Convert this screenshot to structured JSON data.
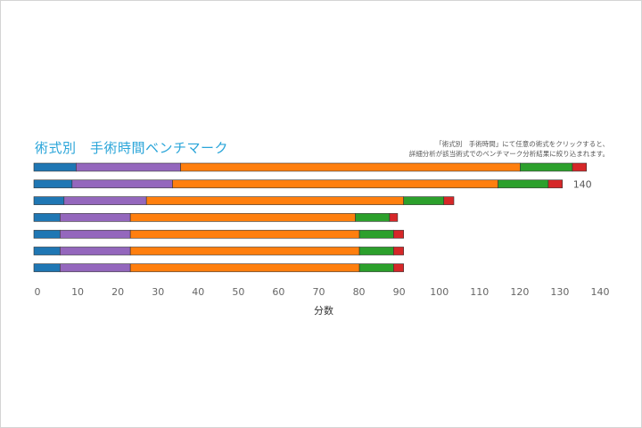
{
  "chart_data": {
    "type": "bar",
    "orientation": "horizontal",
    "stacked": true,
    "title": "術式別　手術時間ベンチマーク",
    "note": [
      "「術式別　手術時間」にて任意の術式をクリックすると、",
      "詳細分析が該当術式でのベンチマーク分析結果に絞り込まれます。"
    ],
    "xlabel": "分数",
    "xlim": [
      0,
      140
    ],
    "xticks": [
      0,
      10,
      20,
      30,
      40,
      50,
      60,
      70,
      80,
      90,
      100,
      110,
      120,
      130,
      140
    ],
    "colors": [
      "#1f77b4",
      "#9467bd",
      "#ff7f0e",
      "#2ca02c",
      "#d62728"
    ],
    "rows": [
      {
        "values": [
          10.5,
          26.0,
          84.5,
          13.0,
          3.5
        ]
      },
      {
        "values": [
          9.5,
          25.0,
          81.0,
          12.5,
          3.5
        ],
        "label": "140"
      },
      {
        "values": [
          7.5,
          20.5,
          64.0,
          10.0,
          2.5
        ]
      },
      {
        "values": [
          6.5,
          17.5,
          56.0,
          8.5,
          2.0
        ]
      },
      {
        "values": [
          6.5,
          17.5,
          57.0,
          8.5,
          2.5
        ]
      },
      {
        "values": [
          6.5,
          17.5,
          57.0,
          8.5,
          2.5
        ]
      },
      {
        "values": [
          6.5,
          17.5,
          57.0,
          8.5,
          2.5
        ]
      }
    ]
  }
}
